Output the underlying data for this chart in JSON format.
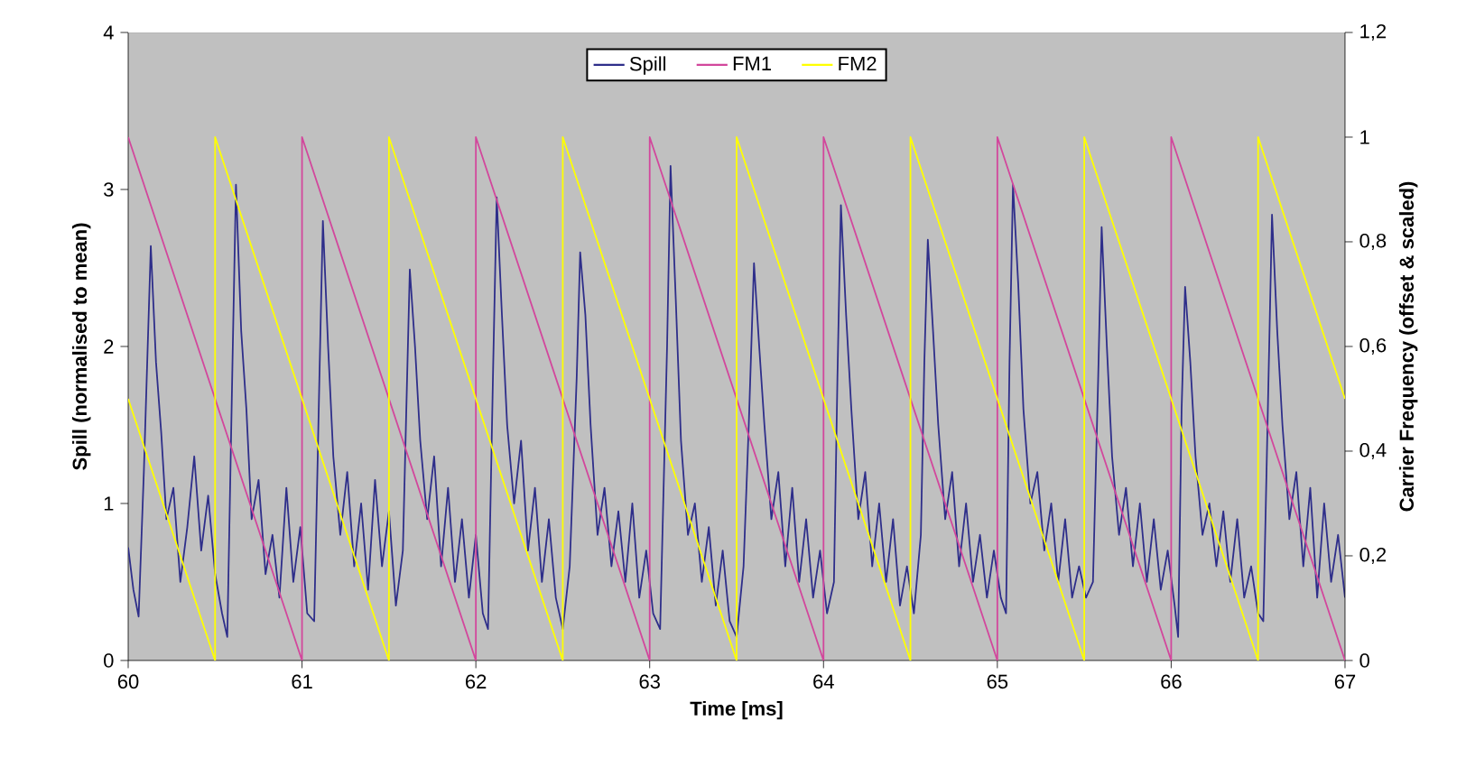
{
  "chart_data": {
    "type": "line",
    "xlabel": "Time [ms]",
    "ylabel": "Spill (normalised to mean)",
    "y2label": "Carrier Frequency (offset & scaled)",
    "xlim": [
      60,
      67
    ],
    "xticks": [
      60,
      61,
      62,
      63,
      64,
      65,
      66,
      67
    ],
    "ylim": [
      0,
      4
    ],
    "yticks": [
      0,
      1,
      2,
      3,
      4
    ],
    "y2lim": [
      0,
      1.2
    ],
    "y2ticks": [
      {
        "value": 0,
        "label": "0"
      },
      {
        "value": 0.2,
        "label": "0,2"
      },
      {
        "value": 0.4,
        "label": "0,4"
      },
      {
        "value": 0.6,
        "label": "0,6"
      },
      {
        "value": 0.8,
        "label": "0,8"
      },
      {
        "value": 1,
        "label": "1"
      },
      {
        "value": 1.2,
        "label": "1,2"
      }
    ],
    "legend": "top",
    "grid": false,
    "series": [
      {
        "name": "Spill",
        "color": "#2e2e8a",
        "x": [
          60.0,
          60.03,
          60.06,
          60.09,
          60.13,
          60.16,
          60.19,
          60.22,
          60.26,
          60.3,
          60.34,
          60.38,
          60.42,
          60.46,
          60.5,
          60.54,
          60.57,
          60.6,
          60.62,
          60.65,
          60.68,
          60.71,
          60.75,
          60.79,
          60.83,
          60.87,
          60.91,
          60.95,
          60.99,
          61.03,
          61.07,
          61.1,
          61.12,
          61.15,
          61.18,
          61.22,
          61.26,
          61.3,
          61.34,
          61.38,
          61.42,
          61.46,
          61.5,
          61.54,
          61.58,
          61.6,
          61.62,
          61.65,
          61.68,
          61.72,
          61.76,
          61.8,
          61.84,
          61.88,
          61.92,
          61.96,
          62.0,
          62.04,
          62.07,
          62.1,
          62.12,
          62.15,
          62.18,
          62.22,
          62.26,
          62.3,
          62.34,
          62.38,
          62.42,
          62.46,
          62.5,
          62.54,
          62.58,
          62.6,
          62.63,
          62.66,
          62.7,
          62.74,
          62.78,
          62.82,
          62.86,
          62.9,
          62.94,
          62.98,
          63.02,
          63.06,
          63.1,
          63.12,
          63.15,
          63.18,
          63.22,
          63.26,
          63.3,
          63.34,
          63.38,
          63.42,
          63.46,
          63.5,
          63.54,
          63.57,
          63.6,
          63.63,
          63.66,
          63.7,
          63.74,
          63.78,
          63.82,
          63.86,
          63.9,
          63.94,
          63.98,
          64.02,
          64.06,
          64.08,
          64.1,
          64.13,
          64.16,
          64.2,
          64.24,
          64.28,
          64.32,
          64.36,
          64.4,
          64.44,
          64.48,
          64.52,
          64.56,
          64.58,
          64.6,
          64.63,
          64.66,
          64.7,
          64.74,
          64.78,
          64.82,
          64.86,
          64.9,
          64.94,
          64.98,
          65.02,
          65.05,
          65.07,
          65.09,
          65.12,
          65.15,
          65.19,
          65.23,
          65.27,
          65.31,
          65.35,
          65.39,
          65.43,
          65.47,
          65.51,
          65.55,
          65.58,
          65.6,
          65.63,
          65.66,
          65.7,
          65.74,
          65.78,
          65.82,
          65.86,
          65.9,
          65.94,
          65.98,
          66.02,
          66.04,
          66.06,
          66.08,
          66.11,
          66.14,
          66.18,
          66.22,
          66.26,
          66.3,
          66.34,
          66.38,
          66.42,
          66.46,
          66.5,
          66.53,
          66.56,
          66.58,
          66.61,
          66.64,
          66.68,
          66.72,
          66.76,
          66.8,
          66.84,
          66.88,
          66.92,
          66.96,
          67.0
        ],
        "values": [
          0.72,
          0.45,
          0.28,
          1.2,
          2.64,
          1.9,
          1.45,
          0.9,
          1.1,
          0.5,
          0.85,
          1.3,
          0.7,
          1.05,
          0.55,
          0.3,
          0.15,
          1.9,
          3.03,
          2.1,
          1.6,
          0.9,
          1.15,
          0.55,
          0.8,
          0.4,
          1.1,
          0.5,
          0.85,
          0.3,
          0.25,
          1.8,
          2.8,
          2.0,
          1.3,
          0.8,
          1.2,
          0.6,
          1.0,
          0.45,
          1.15,
          0.6,
          0.95,
          0.35,
          0.7,
          1.6,
          2.49,
          2.0,
          1.4,
          0.9,
          1.3,
          0.6,
          1.1,
          0.5,
          0.9,
          0.4,
          0.8,
          0.3,
          0.2,
          1.9,
          2.95,
          2.2,
          1.5,
          1.0,
          1.4,
          0.7,
          1.1,
          0.5,
          0.9,
          0.4,
          0.2,
          0.6,
          1.8,
          2.6,
          2.2,
          1.5,
          0.8,
          1.1,
          0.6,
          0.95,
          0.5,
          1.0,
          0.4,
          0.7,
          0.3,
          0.2,
          2.0,
          3.15,
          2.3,
          1.4,
          0.8,
          1.0,
          0.5,
          0.85,
          0.35,
          0.7,
          0.25,
          0.15,
          0.6,
          1.5,
          2.53,
          2.0,
          1.5,
          0.9,
          1.2,
          0.6,
          1.1,
          0.5,
          0.9,
          0.4,
          0.7,
          0.3,
          0.5,
          1.8,
          2.9,
          2.2,
          1.6,
          0.9,
          1.2,
          0.6,
          1.0,
          0.5,
          0.9,
          0.35,
          0.6,
          0.3,
          0.8,
          1.9,
          2.68,
          2.1,
          1.5,
          0.9,
          1.2,
          0.6,
          1.0,
          0.5,
          0.8,
          0.4,
          0.7,
          0.4,
          0.3,
          1.9,
          3.03,
          2.4,
          1.6,
          1.0,
          1.2,
          0.7,
          1.0,
          0.5,
          0.9,
          0.4,
          0.6,
          0.4,
          0.5,
          1.8,
          2.76,
          2.0,
          1.3,
          0.8,
          1.1,
          0.6,
          1.0,
          0.5,
          0.9,
          0.45,
          0.7,
          0.35,
          0.15,
          1.6,
          2.38,
          1.9,
          1.3,
          0.8,
          1.0,
          0.6,
          0.95,
          0.5,
          0.9,
          0.4,
          0.6,
          0.3,
          0.25,
          1.8,
          2.84,
          2.1,
          1.5,
          0.9,
          1.2,
          0.6,
          1.1,
          0.4,
          1.0,
          0.5,
          0.8,
          0.4
        ]
      },
      {
        "name": "FM1",
        "color": "#d2479c",
        "axis": "y2",
        "x": [
          60,
          61,
          61,
          62,
          62,
          63,
          63,
          64,
          64,
          65,
          65,
          66,
          66,
          67
        ],
        "values": [
          1,
          0,
          1,
          0,
          1,
          0,
          1,
          0,
          1,
          0,
          1,
          0,
          1,
          0
        ]
      },
      {
        "name": "FM2",
        "color": "#ffff00",
        "axis": "y2",
        "x": [
          60,
          60.5,
          60.5,
          61.5,
          61.5,
          62.5,
          62.5,
          63.5,
          63.5,
          64.5,
          64.5,
          65.5,
          65.5,
          66.5,
          66.5,
          67
        ],
        "values": [
          0.5,
          0,
          1,
          0,
          1,
          0,
          1,
          0,
          1,
          0,
          1,
          0,
          1,
          0,
          1,
          0.5
        ]
      }
    ]
  }
}
